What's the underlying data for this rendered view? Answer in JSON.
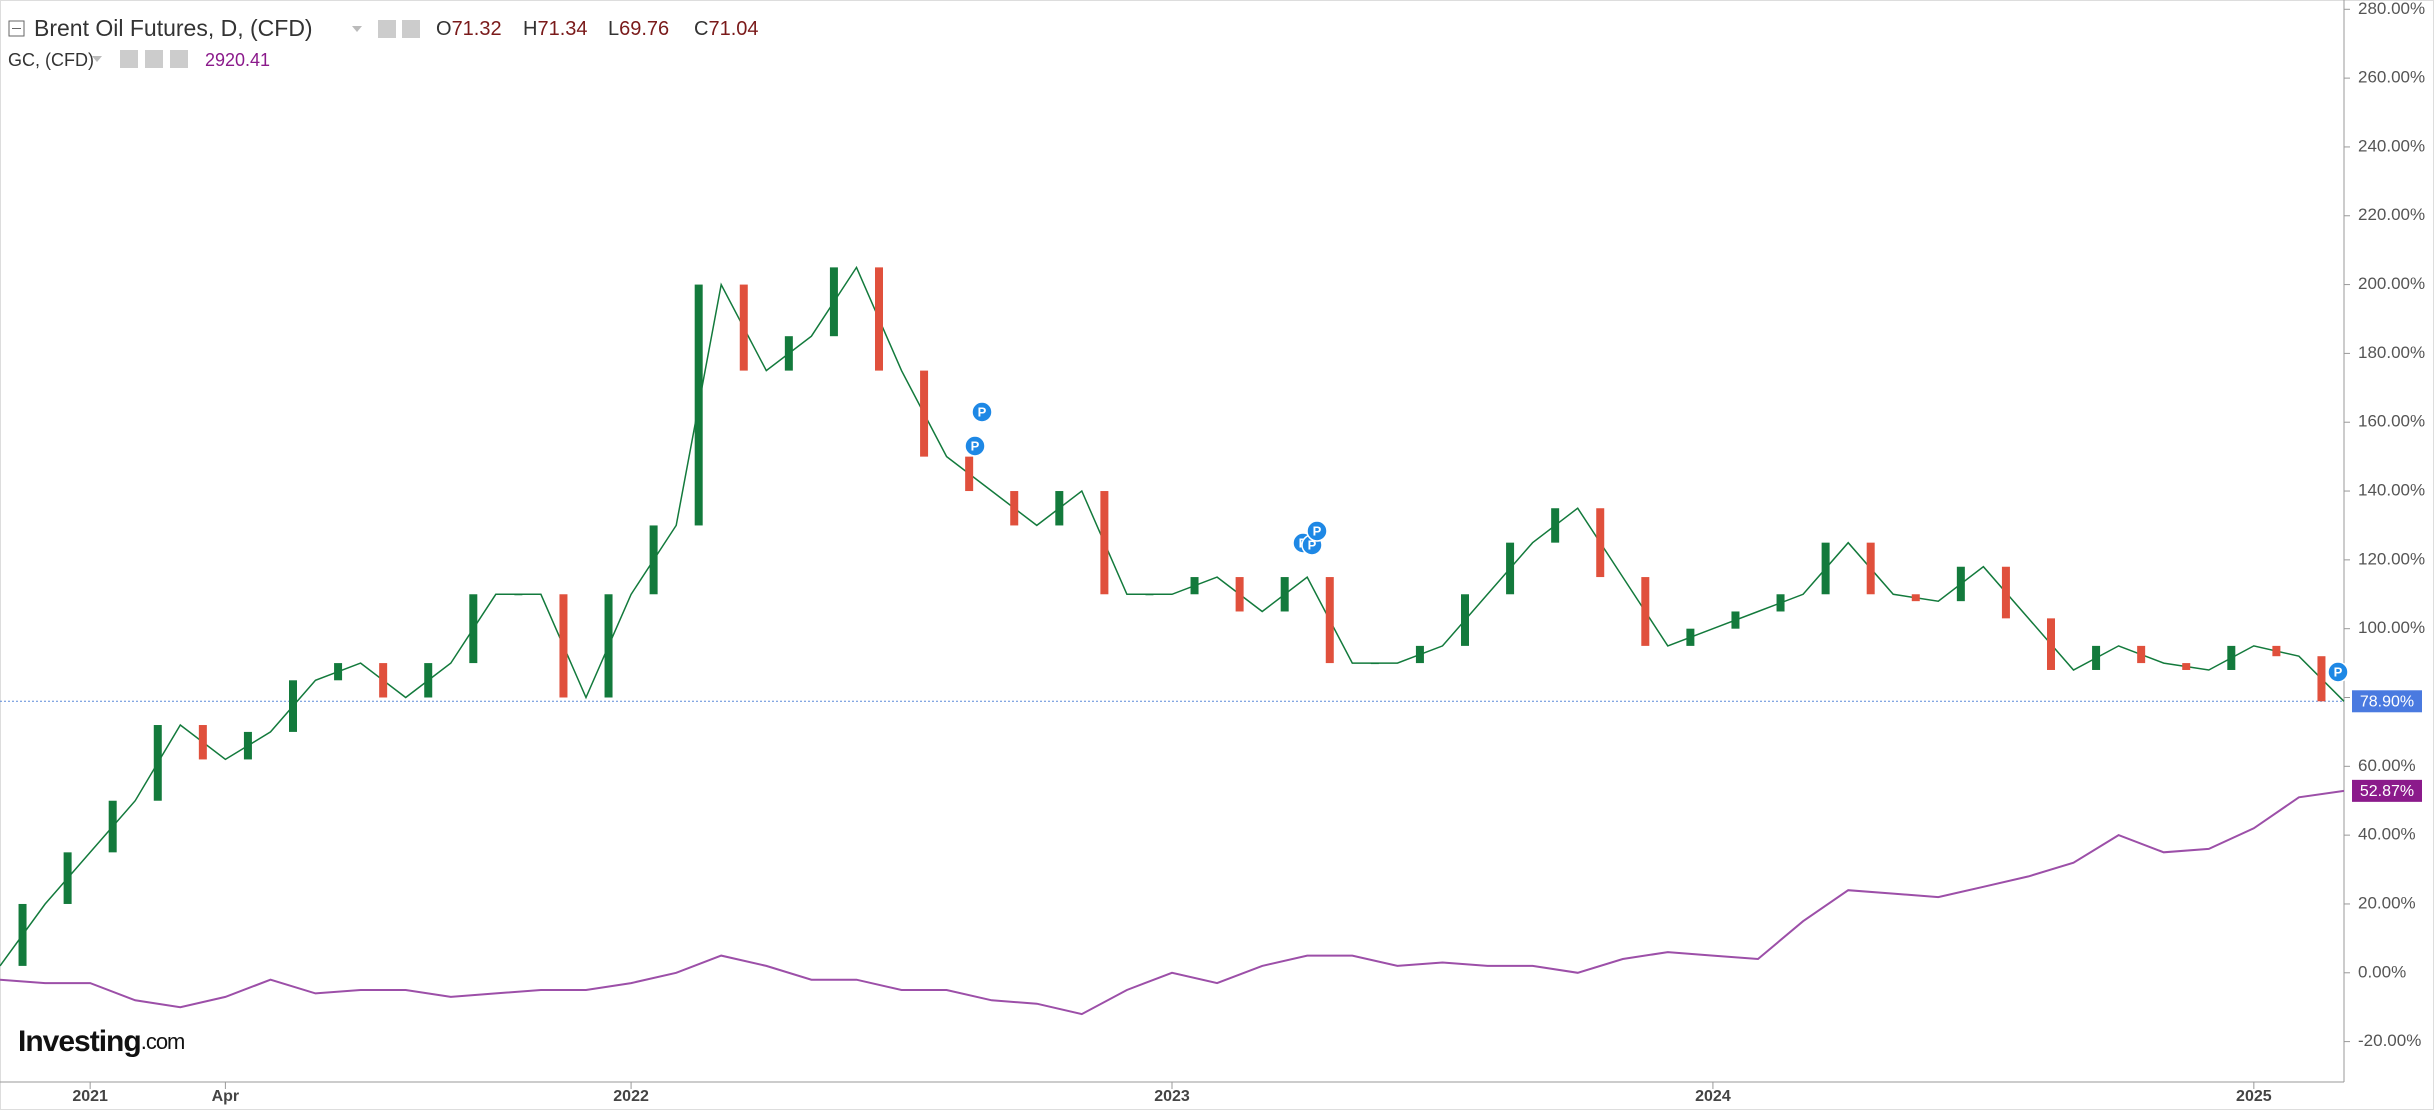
{
  "chart_data": {
    "type": "line",
    "title": "Brent Oil Futures, D, (CFD)",
    "ohlc": [
      {
        "label": "O",
        "value": 71.32
      },
      {
        "label": "H",
        "value": 71.34
      },
      {
        "label": "L",
        "value": 69.76
      },
      {
        "label": "C",
        "value": 71.04
      }
    ],
    "compare": {
      "name": "GC, (CFD)",
      "price": 2920.41
    },
    "watermark": "Investing",
    "watermark_suffix": ".com",
    "event_marker_label": "P",
    "x": [
      "2020-11",
      "2020-12",
      "2021-01",
      "2021-02",
      "2021-03",
      "2021-04",
      "2021-05",
      "2021-06",
      "2021-07",
      "2021-08",
      "2021-09",
      "2021-10",
      "2021-11",
      "2021-12",
      "2022-01",
      "2022-02",
      "2022-03",
      "2022-04",
      "2022-05",
      "2022-06",
      "2022-07",
      "2022-08",
      "2022-09",
      "2022-10",
      "2022-11",
      "2022-12",
      "2023-01",
      "2023-02",
      "2023-03",
      "2023-04",
      "2023-05",
      "2023-06",
      "2023-07",
      "2023-08",
      "2023-09",
      "2023-10",
      "2023-11",
      "2023-12",
      "2024-01",
      "2024-02",
      "2024-03",
      "2024-04",
      "2024-05",
      "2024-06",
      "2024-07",
      "2024-08",
      "2024-09",
      "2024-10",
      "2024-11",
      "2024-12",
      "2025-01",
      "2025-02",
      "2025-03"
    ],
    "series": [
      {
        "name": "Brent Oil Futures",
        "color": "#137a3c",
        "down_color": "#e0503c",
        "values": [
          2,
          20,
          35,
          50,
          72,
          62,
          70,
          85,
          90,
          80,
          90,
          110,
          110,
          80,
          110,
          130,
          200,
          175,
          185,
          205,
          175,
          150,
          140,
          130,
          140,
          110,
          110,
          115,
          105,
          115,
          90,
          90,
          95,
          110,
          125,
          135,
          115,
          95,
          100,
          105,
          110,
          125,
          110,
          108,
          118,
          103,
          88,
          95,
          90,
          88,
          95,
          92,
          78.9
        ],
        "last": {
          "value": 78.9,
          "label": "78.90%"
        },
        "label_color": "#4a7ae0"
      },
      {
        "name": "GC",
        "color": "#9c4fa8",
        "values": [
          -2,
          -3,
          -3,
          -8,
          -10,
          -7,
          -2,
          -6,
          -5,
          -5,
          -7,
          -6,
          -5,
          -5,
          -3,
          0,
          5,
          2,
          -2,
          -2,
          -5,
          -5,
          -8,
          -9,
          -12,
          -5,
          0,
          -3,
          2,
          5,
          5,
          2,
          3,
          2,
          2,
          0,
          4,
          6,
          5,
          4,
          15,
          24,
          23,
          22,
          25,
          28,
          32,
          40,
          35,
          36,
          42,
          51,
          52.87
        ],
        "last": {
          "value": 52.87,
          "label": "52.87%"
        },
        "label_color": "#8b1a8b"
      }
    ],
    "xlim": [
      "2020-11",
      "2025-03"
    ],
    "xticks": [
      {
        "value": "2021-01",
        "label": "2021"
      },
      {
        "value": "2021-04",
        "label": "Apr"
      },
      {
        "value": "2022-01",
        "label": "2022"
      },
      {
        "value": "2023-01",
        "label": "2023"
      },
      {
        "value": "2024-01",
        "label": "2024"
      },
      {
        "value": "2025-01",
        "label": "2025"
      }
    ],
    "ylim": [
      -20,
      280
    ],
    "yticks": [
      {
        "value": -20,
        "label": "-20.00%"
      },
      {
        "value": 0,
        "label": "0.00%"
      },
      {
        "value": 20,
        "label": "20.00%"
      },
      {
        "value": 40,
        "label": "40.00%"
      },
      {
        "value": 60,
        "label": "60.00%"
      },
      {
        "value": 80,
        "label": "80.00%"
      },
      {
        "value": 100,
        "label": "100.00%"
      },
      {
        "value": 120,
        "label": "120.00%"
      },
      {
        "value": 140,
        "label": "140.00%"
      },
      {
        "value": 160,
        "label": "160.00%"
      },
      {
        "value": 180,
        "label": "180.00%"
      },
      {
        "value": 200,
        "label": "200.00%"
      },
      {
        "value": 220,
        "label": "220.00%"
      },
      {
        "value": 240,
        "label": "240.00%"
      },
      {
        "value": 260,
        "label": "260.00%"
      },
      {
        "value": 280,
        "label": "280.00%"
      }
    ]
  }
}
